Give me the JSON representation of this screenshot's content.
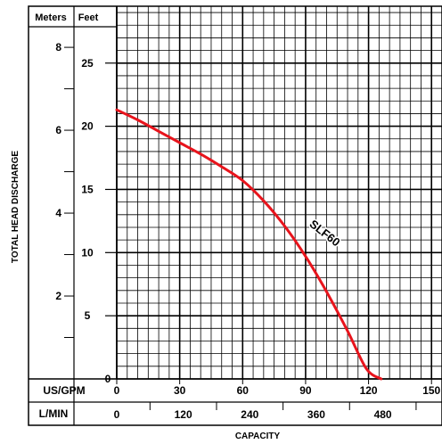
{
  "chart_data": {
    "type": "line",
    "xlabel": "CAPACITY",
    "ylabel": "TOTAL HEAD DISCHARGE",
    "headers": {
      "meters": "Meters",
      "feet": "Feet"
    },
    "x_primary": {
      "unit": "US/GPM",
      "range": [
        0,
        155
      ],
      "ticks": [
        "0",
        "30",
        "60",
        "90",
        "120",
        "150"
      ]
    },
    "x_secondary": {
      "unit": "L/MIN",
      "ticks": [
        "0",
        "120",
        "240",
        "360",
        "480"
      ]
    },
    "y_feet": {
      "range": [
        0,
        29.5
      ],
      "ticks": [
        "0",
        "5",
        "10",
        "15",
        "20",
        "25"
      ]
    },
    "y_meters": {
      "ticks": [
        "2",
        "4",
        "6",
        "8"
      ]
    },
    "grid": true,
    "series": [
      {
        "name": "SLF60",
        "color": "#e8141c",
        "x": [
          0,
          10,
          20,
          30,
          40,
          50,
          60,
          70,
          80,
          90,
          100,
          110,
          119,
          126
        ],
        "y": [
          21.3,
          20.5,
          19.6,
          18.7,
          17.8,
          16.8,
          15.7,
          14.1,
          12.1,
          9.7,
          6.9,
          3.8,
          0.8,
          0
        ]
      }
    ],
    "annotation": {
      "text": "SLF60",
      "at_x": 98,
      "at_y": 11.3
    }
  }
}
